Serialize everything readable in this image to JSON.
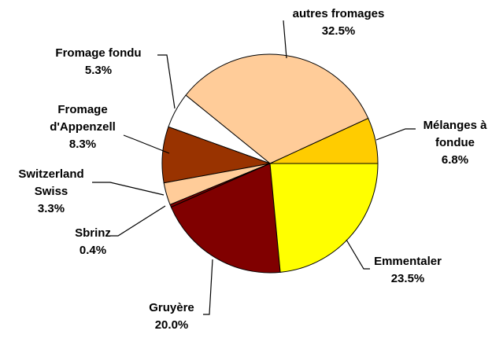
{
  "chart_data": {
    "type": "pie",
    "categories": [
      "Mélanges à fondue",
      "autres fromages",
      "Fromage fondu",
      "Fromage d'Appenzell",
      "Switzerland Swiss",
      "Sbrinz",
      "Gruyère",
      "Emmentaler"
    ],
    "values": [
      6.8,
      32.5,
      5.3,
      8.3,
      3.3,
      0.4,
      20.0,
      23.5
    ],
    "value_labels": [
      "6.8%",
      "32.5%",
      "5.3%",
      "8.3%",
      "3.3%",
      "0.4%",
      "20.0%",
      "23.5%"
    ],
    "colors": [
      "#ffcc00",
      "#ffcc99",
      "#ffffff",
      "#993300",
      "#ffcc99",
      "#800000",
      "#800000",
      "#ffff00"
    ]
  }
}
